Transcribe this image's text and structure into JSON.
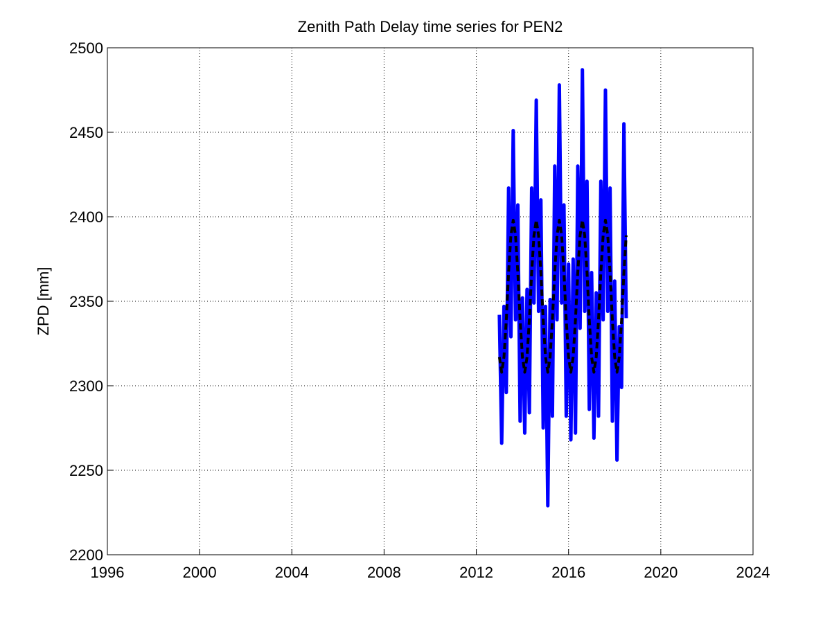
{
  "chart_data": {
    "type": "line",
    "title": "Zenith Path Delay time series for PEN2",
    "y_label": "ZPD [mm]",
    "x": [
      2013,
      2013.1,
      2013.2,
      2013.3,
      2013.4,
      2013.5,
      2013.6,
      2013.7,
      2013.8,
      2013.9,
      2014,
      2014.1,
      2014.2,
      2014.3,
      2014.4,
      2014.5,
      2014.6,
      2014.7,
      2014.8,
      2014.9,
      2015,
      2015.1,
      2015.2,
      2015.3,
      2015.4,
      2015.5,
      2015.6,
      2015.7,
      2015.8,
      2015.9,
      2016,
      2016.1,
      2016.2,
      2016.3,
      2016.4,
      2016.5,
      2016.6,
      2016.7,
      2016.8,
      2016.9,
      2017,
      2017.1,
      2017.2,
      2017.3,
      2017.4,
      2017.5,
      2017.6,
      2017.7,
      2017.8,
      2017.9,
      2018,
      2018.1,
      2018.2,
      2018.3,
      2018.4,
      2018.5
    ],
    "series": [
      {
        "color": "#0000ff",
        "dashed": false,
        "values": [
          2342,
          2266,
          2347,
          2296,
          2417,
          2329,
          2451,
          2339,
          2407,
          2279,
          2352,
          2272,
          2357,
          2284,
          2417,
          2349,
          2469,
          2344,
          2410,
          2275,
          2347,
          2229,
          2351,
          2282,
          2430,
          2339,
          2478,
          2349,
          2407,
          2282,
          2372,
          2268,
          2375,
          2272,
          2430,
          2334,
          2487,
          2344,
          2421,
          2286,
          2367,
          2269,
          2355,
          2282,
          2421,
          2339,
          2475,
          2344,
          2417,
          2279,
          2362,
          2256,
          2335,
          2299,
          2455,
          2340
        ]
      },
      {
        "color": "#000000",
        "dashed": true,
        "values": [
          2317,
          2308,
          2317,
          2339,
          2367,
          2389,
          2398,
          2389,
          2367,
          2339,
          2317,
          2308,
          2317,
          2339,
          2367,
          2389,
          2398,
          2389,
          2367,
          2339,
          2317,
          2308,
          2317,
          2339,
          2367,
          2389,
          2398,
          2389,
          2367,
          2339,
          2317,
          2308,
          2317,
          2339,
          2367,
          2389,
          2398,
          2389,
          2367,
          2339,
          2317,
          2308,
          2317,
          2339,
          2367,
          2389,
          2398,
          2389,
          2367,
          2339,
          2317,
          2308,
          2317,
          2339,
          2367,
          2389
        ]
      }
    ],
    "xlim": [
      1996,
      2024
    ],
    "xticks": [
      1996,
      2000,
      2004,
      2008,
      2012,
      2016,
      2020,
      2024
    ],
    "ylim": [
      2200,
      2500
    ],
    "yticks": [
      2200,
      2250,
      2300,
      2350,
      2400,
      2450,
      2500
    ],
    "grid": true
  }
}
